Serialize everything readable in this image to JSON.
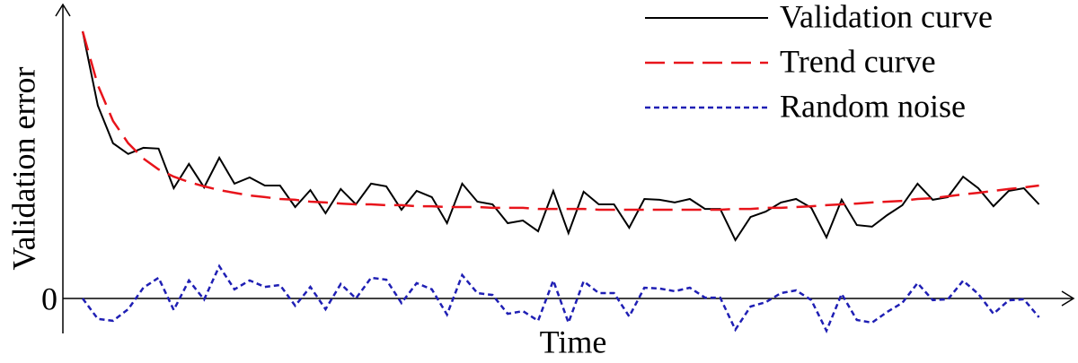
{
  "chart_data": {
    "type": "line",
    "ylabel": "Validation error",
    "xlabel": "Time",
    "x": [
      0,
      1,
      2,
      3,
      4,
      5,
      6,
      7,
      8,
      9,
      10,
      11,
      12,
      13,
      14,
      15,
      16,
      17,
      18,
      19,
      20,
      21,
      22,
      23,
      24,
      25,
      26,
      27,
      28,
      29,
      30,
      31,
      32,
      33,
      34,
      35,
      36,
      37,
      38,
      39,
      40,
      41,
      42,
      43,
      44,
      45,
      46,
      47,
      48,
      49,
      50,
      51,
      52,
      53,
      54,
      55,
      56,
      57,
      58,
      59,
      60,
      61,
      62,
      63
    ],
    "xlim": [
      -1.3,
      65.27
    ],
    "ylim": [
      -1.3,
      10.93
    ],
    "yticks": [
      0
    ],
    "legend": "upper right",
    "series": [
      {
        "name": "Validation curve",
        "color": "#000000",
        "dash": "solid",
        "values": [
          9.93,
          7.17,
          5.77,
          5.37,
          5.6,
          5.57,
          4.1,
          5.0,
          4.13,
          5.23,
          4.27,
          4.5,
          4.2,
          4.2,
          3.4,
          4.03,
          3.17,
          4.07,
          3.5,
          4.27,
          4.17,
          3.3,
          4.0,
          3.77,
          2.8,
          4.27,
          3.6,
          3.5,
          2.8,
          2.9,
          2.5,
          4.0,
          2.43,
          3.97,
          3.5,
          3.5,
          2.63,
          3.7,
          3.67,
          3.57,
          3.7,
          3.33,
          3.33,
          2.17,
          3.03,
          3.23,
          3.57,
          3.7,
          3.37,
          2.27,
          3.67,
          2.73,
          2.67,
          3.1,
          3.47,
          4.27,
          3.67,
          3.77,
          4.53,
          4.1,
          3.43,
          4.0,
          4.1,
          3.5
        ]
      },
      {
        "name": "Trend curve",
        "color": "#e8141b",
        "dash": "long",
        "values": [
          9.93,
          7.93,
          6.6,
          5.77,
          5.2,
          4.8,
          4.53,
          4.33,
          4.17,
          4.03,
          3.93,
          3.83,
          3.77,
          3.7,
          3.67,
          3.6,
          3.57,
          3.53,
          3.5,
          3.5,
          3.47,
          3.47,
          3.43,
          3.43,
          3.4,
          3.4,
          3.4,
          3.37,
          3.37,
          3.37,
          3.33,
          3.33,
          3.33,
          3.33,
          3.3,
          3.3,
          3.3,
          3.3,
          3.3,
          3.3,
          3.3,
          3.3,
          3.3,
          3.33,
          3.33,
          3.37,
          3.37,
          3.4,
          3.43,
          3.47,
          3.5,
          3.53,
          3.57,
          3.6,
          3.63,
          3.7,
          3.73,
          3.8,
          3.87,
          3.93,
          4.0,
          4.07,
          4.13,
          4.2
        ]
      },
      {
        "name": "Random noise",
        "color": "#1f1fb4",
        "dash": "short",
        "values": [
          0,
          -0.76,
          -0.83,
          -0.4,
          0.4,
          0.77,
          -0.43,
          0.67,
          -0.04,
          1.2,
          0.34,
          0.67,
          0.43,
          0.5,
          -0.27,
          0.43,
          -0.4,
          0.54,
          0,
          0.77,
          0.7,
          -0.17,
          0.57,
          0.34,
          -0.6,
          0.87,
          0.2,
          0.13,
          -0.57,
          -0.47,
          -0.83,
          0.67,
          -0.9,
          0.64,
          0.2,
          0.2,
          -0.67,
          0.4,
          0.37,
          0.27,
          0.4,
          0.03,
          0.03,
          -1.16,
          -0.3,
          -0.14,
          0.2,
          0.3,
          -0.06,
          -1.2,
          0.17,
          -0.8,
          -0.9,
          -0.5,
          -0.16,
          0.57,
          -0.06,
          -0.03,
          0.66,
          0.17,
          -0.57,
          -0.07,
          -0.03,
          -0.7
        ]
      }
    ]
  }
}
